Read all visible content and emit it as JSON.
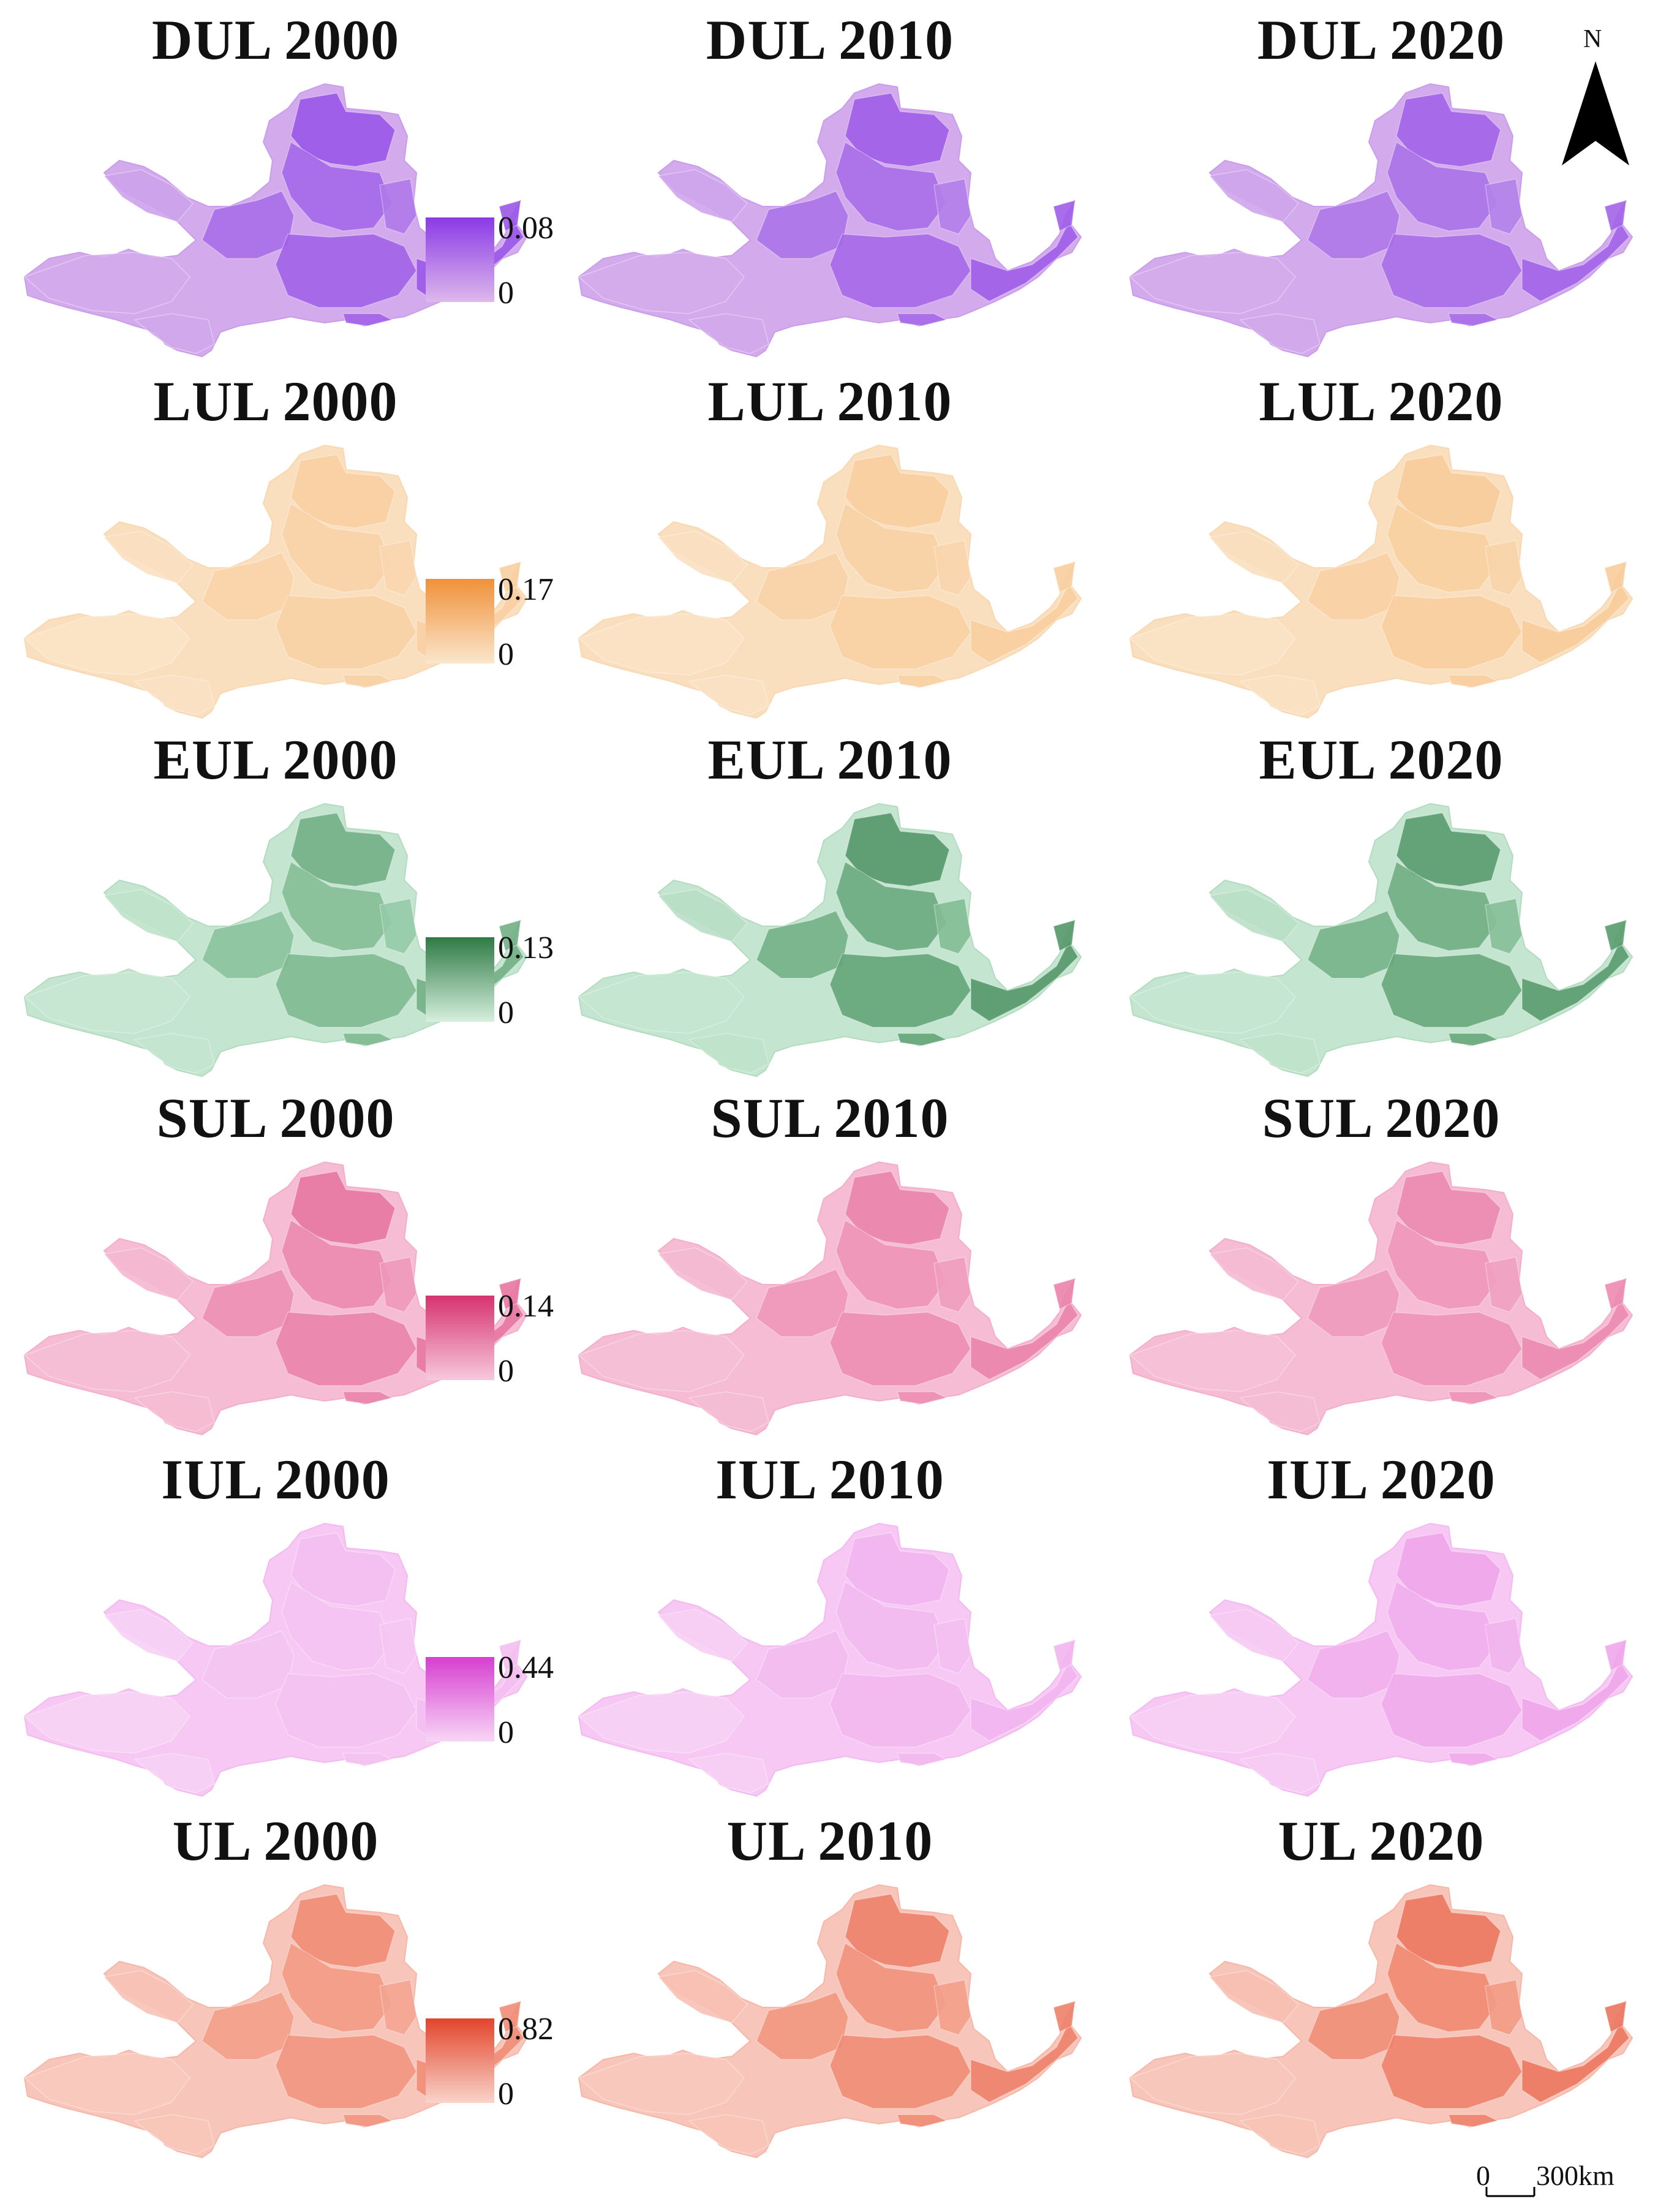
{
  "figure": {
    "north_label": "N",
    "scale_zero": "0",
    "scale_text": "300km"
  },
  "rows": [
    {
      "indicator": "DUL",
      "palette": {
        "low": "#ddb8ec",
        "mid": "#b482ea",
        "high": "#8a3ae6"
      },
      "legend": {
        "max": "0.08",
        "min": "0"
      },
      "panels": [
        {
          "title": "DUL 2000",
          "intensity": 0.62
        },
        {
          "title": "DUL 2010",
          "intensity": 0.58
        },
        {
          "title": "DUL 2020",
          "intensity": 0.55
        }
      ]
    },
    {
      "indicator": "LUL",
      "palette": {
        "low": "#fbe6cc",
        "mid": "#f7c995",
        "high": "#f0913a"
      },
      "legend": {
        "max": "0.17",
        "min": "0"
      },
      "panels": [
        {
          "title": "LUL 2000",
          "intensity": 0.3
        },
        {
          "title": "LUL 2010",
          "intensity": 0.32
        },
        {
          "title": "LUL 2020",
          "intensity": 0.35
        }
      ]
    },
    {
      "indicator": "EUL",
      "palette": {
        "low": "#d6efde",
        "mid": "#8fc6a0",
        "high": "#2f7a45"
      },
      "legend": {
        "max": "0.13",
        "min": "0"
      },
      "panels": [
        {
          "title": "EUL 2000",
          "intensity": 0.5
        },
        {
          "title": "EUL 2010",
          "intensity": 0.62
        },
        {
          "title": "EUL 2020",
          "intensity": 0.6
        }
      ]
    },
    {
      "indicator": "SUL",
      "palette": {
        "low": "#f7c9dc",
        "mid": "#ee93b7",
        "high": "#d6336f"
      },
      "legend": {
        "max": "0.14",
        "min": "0"
      },
      "panels": [
        {
          "title": "SUL 2000",
          "intensity": 0.5
        },
        {
          "title": "SUL 2010",
          "intensity": 0.45
        },
        {
          "title": "SUL 2020",
          "intensity": 0.42
        }
      ]
    },
    {
      "indicator": "IUL",
      "palette": {
        "low": "#f8d6f6",
        "mid": "#ee9ce9",
        "high": "#d63fd0"
      },
      "legend": {
        "max": "0.44",
        "min": "0"
      },
      "panels": [
        {
          "title": "IUL 2000",
          "intensity": 0.15
        },
        {
          "title": "IUL 2010",
          "intensity": 0.22
        },
        {
          "title": "IUL 2020",
          "intensity": 0.32
        }
      ]
    },
    {
      "indicator": "UL",
      "palette": {
        "low": "#f9d3ca",
        "mid": "#f29a85",
        "high": "#e2452b"
      },
      "legend": {
        "max": "0.82",
        "min": "0"
      },
      "panels": [
        {
          "title": "UL 2000",
          "intensity": 0.45
        },
        {
          "title": "UL 2010",
          "intensity": 0.5
        },
        {
          "title": "UL 2020",
          "intensity": 0.55
        }
      ]
    }
  ]
}
